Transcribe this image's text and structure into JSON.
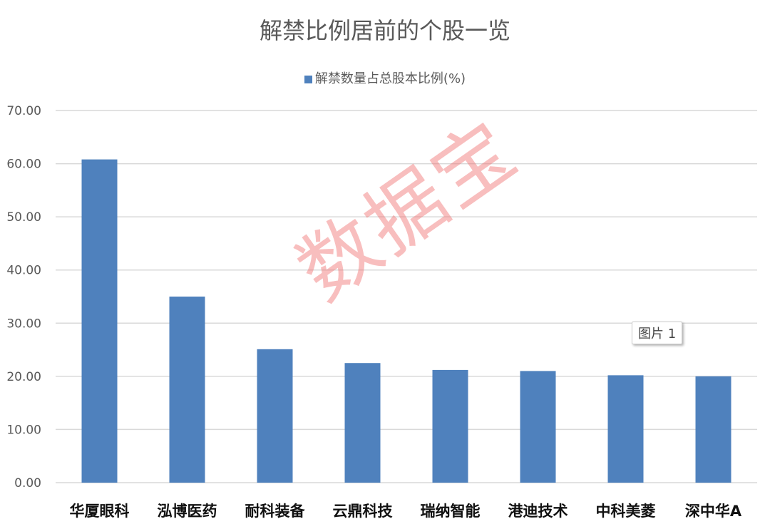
{
  "chart_data": {
    "type": "bar",
    "title": "解禁比例居前的个股一览",
    "legend": {
      "entries": [
        "解禁数量占总股本比例(%)"
      ],
      "placement": "top"
    },
    "categories": [
      "华厦眼科",
      "泓博医药",
      "耐科装备",
      "云鼎科技",
      "瑞纳智能",
      "港迪技术",
      "中科美菱",
      "深中华A"
    ],
    "series": [
      {
        "name": "解禁数量占总股本比例(%)",
        "values": [
          60.8,
          35.0,
          25.1,
          22.5,
          21.2,
          21.0,
          20.2,
          20.0
        ],
        "color": "#4f81bd"
      }
    ],
    "ylim": [
      0,
      70
    ],
    "yticks": [
      "0.00",
      "10.00",
      "20.00",
      "30.00",
      "40.00",
      "50.00",
      "60.00",
      "70.00"
    ],
    "grid": true
  },
  "watermark": "数据宝",
  "tooltip": "图片 1"
}
